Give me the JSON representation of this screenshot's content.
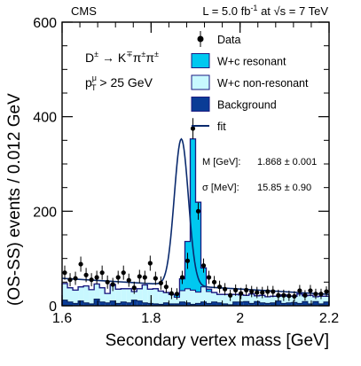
{
  "chart_data": {
    "type": "histogram",
    "header_left": "CMS",
    "header_right": {
      "lumi_prefix": "L = 5.0 fb",
      "lumi_exp": "-1",
      "energy_prefix": " at ",
      "sqrt": "√",
      "energy_suffix": "s = 7 TeV"
    },
    "xlabel": "Secondary vertex mass [GeV]",
    "ylabel": "(OS-SS) events / 0.012 GeV",
    "xlim": [
      1.6,
      2.2
    ],
    "ylim": [
      0,
      600
    ],
    "x_ticks": [
      1.6,
      1.8,
      2.0,
      2.2
    ],
    "x_tick_labels": [
      "1.6",
      "1.8",
      "2",
      "2.2"
    ],
    "y_ticks": [
      0,
      200,
      400,
      600
    ],
    "y_tick_labels": [
      "0",
      "200",
      "400",
      "600"
    ],
    "bin_width": 0.012,
    "x_start": 1.6,
    "annotation_decay": {
      "prefix": "D",
      "pm1": "±",
      "arrow": " → K",
      "kpm": "∓",
      "pi1": "π",
      "pm2": "±",
      "pi2": "π",
      "pm3": "±"
    },
    "annotation_cut": {
      "p": "p",
      "sup": "μ",
      "sub": "T",
      "rest": " > 25 GeV"
    },
    "fit_results": [
      {
        "label": "M [GeV]:",
        "value": "1.868 ± 0.001"
      },
      {
        "label": "σ [MeV]:",
        "value": "15.85 ± 0.90"
      }
    ],
    "legend": [
      {
        "name": "Data",
        "kind": "marker"
      },
      {
        "name": "W+c resonant",
        "kind": "fill",
        "color": "#00c8f0"
      },
      {
        "name": "W+c non-resonant",
        "kind": "fill",
        "color": "#c8f8ff"
      },
      {
        "name": "Background",
        "kind": "fill",
        "color": "#0a3c96"
      },
      {
        "name": "fit",
        "kind": "line",
        "color": "#0a2a6e"
      }
    ],
    "colors": {
      "resonant": "#00c8f0",
      "nonresonant": "#c8f8ff",
      "background": "#0a3c96",
      "outline": "#1a1a80",
      "fit": "#0a2a6e"
    },
    "series": [
      {
        "name": "Background",
        "values": [
          12,
          8,
          5,
          10,
          6,
          4,
          14,
          8,
          6,
          10,
          5,
          8,
          6,
          12,
          10,
          6,
          5,
          4,
          3,
          6,
          4,
          4,
          8,
          6,
          3,
          5,
          8,
          5,
          8,
          6,
          4,
          2,
          8,
          8,
          9,
          5,
          9,
          6,
          5,
          6,
          10,
          5,
          6,
          7,
          5,
          9,
          4,
          9,
          4,
          8
        ]
      },
      {
        "name": "W+c non-resonant",
        "values": [
          35,
          30,
          28,
          30,
          36,
          30,
          32,
          30,
          20,
          35,
          30,
          28,
          30,
          18,
          26,
          38,
          30,
          32,
          28,
          22,
          20,
          14,
          24,
          30,
          30,
          24,
          32,
          25,
          20,
          18,
          20,
          22,
          16,
          15,
          13,
          20,
          12,
          16,
          14,
          14,
          10,
          18,
          14,
          13,
          20,
          12,
          18,
          10,
          16,
          12
        ]
      },
      {
        "name": "W+c resonant",
        "values": [
          0,
          0,
          0,
          0,
          0,
          0,
          0,
          0,
          0,
          0,
          0,
          0,
          0,
          0,
          0,
          0,
          0,
          0,
          0,
          0,
          0,
          5,
          25,
          100,
          320,
          190,
          40,
          5,
          0,
          0,
          0,
          0,
          0,
          0,
          0,
          0,
          0,
          0,
          0,
          0,
          0,
          0,
          0,
          0,
          0,
          0,
          0,
          0,
          0,
          0
        ]
      },
      {
        "name": "Data",
        "values": [
          70,
          55,
          58,
          88,
          65,
          55,
          60,
          70,
          50,
          45,
          60,
          70,
          54,
          38,
          62,
          60,
          90,
          58,
          48,
          40,
          26,
          25,
          60,
          95,
          375,
          200,
          85,
          60,
          50,
          40,
          35,
          22,
          33,
          26,
          33,
          30,
          28,
          28,
          30,
          30,
          22,
          22,
          21,
          20,
          32,
          22,
          32,
          25,
          25,
          30
        ],
        "errors": [
          15,
          14,
          14,
          16,
          15,
          14,
          14,
          15,
          14,
          14,
          14,
          15,
          14,
          13,
          14,
          14,
          16,
          14,
          14,
          13,
          12,
          12,
          14,
          17,
          22,
          18,
          15,
          14,
          13,
          13,
          13,
          12,
          12,
          12,
          12,
          12,
          12,
          12,
          12,
          12,
          12,
          12,
          11,
          11,
          12,
          11,
          12,
          11,
          11,
          11
        ]
      },
      {
        "name": "fit",
        "model": "gaussian_plus_linear",
        "mean": 1.868,
        "sigma": 0.01585,
        "amplitude": 310,
        "linear_at_xmin": 58,
        "linear_at_xmax": 24
      }
    ]
  }
}
